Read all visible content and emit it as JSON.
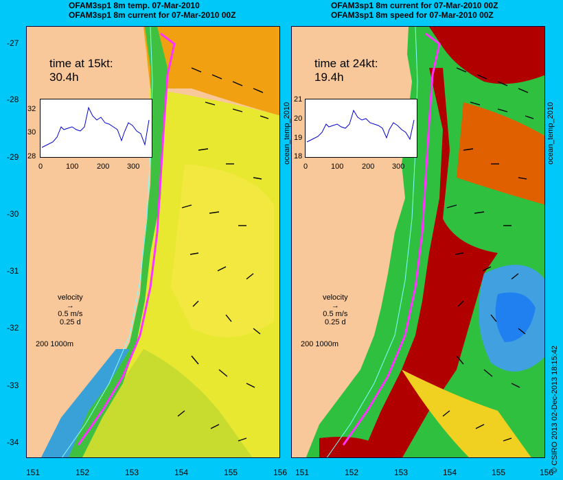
{
  "left_panel": {
    "title_line1": "OFAM3sp1 8m temp. 07-Mar-2010",
    "title_line2": "OFAM3sp1 8m current for 07-Mar-2010 00Z",
    "time_label": "time at 15kt:",
    "time_value": "30.4h",
    "side_label": "ocean_temp_2010",
    "inset": {
      "yticks": [
        "32",
        "30",
        "28"
      ],
      "xticks": [
        "0",
        "100",
        "200",
        "300"
      ]
    },
    "velocity_title": "velocity",
    "velocity_speed": "0.5 m/s",
    "velocity_days": "0.25 d",
    "contour_scale": "200  1000m"
  },
  "right_panel": {
    "title_line1": "OFAM3sp1 8m current for 07-Mar-2010 00Z",
    "title_line2": "OFAM3sp1 8m speed for 07-Mar-2010 00Z",
    "time_label": "time at 24kt:",
    "time_value": "19.4h",
    "side_label": "ocean_temp_2010",
    "inset": {
      "yticks": [
        "21",
        "20",
        "19",
        "18"
      ],
      "xticks": [
        "0",
        "100",
        "200",
        "300"
      ]
    },
    "velocity_title": "velocity",
    "velocity_speed": "0.5 m/s",
    "velocity_days": "0.25 d",
    "contour_scale": "200  1000m"
  },
  "axes": {
    "lat_ticks": [
      "-27",
      "-28",
      "-29",
      "-30",
      "-31",
      "-32",
      "-33",
      "-34"
    ],
    "lon_ticks": [
      "151",
      "152",
      "153",
      "154",
      "155",
      "156"
    ]
  },
  "credit": "© CSIRO 2013  02-Dec-2013 18:15:42",
  "colors": {
    "background": "#00c8f8",
    "land": "#f9c89a",
    "route": "#ff33ff",
    "series": "#0000cc"
  }
}
